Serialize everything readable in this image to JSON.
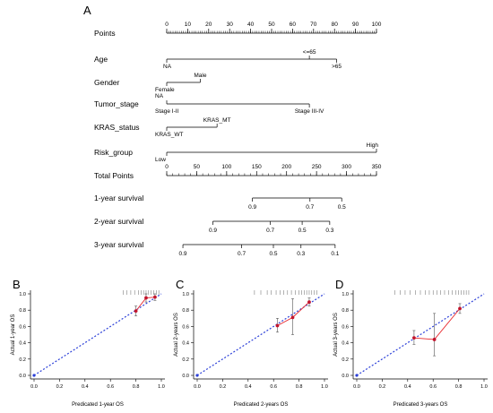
{
  "chart_data": [
    {
      "type": "nomogram",
      "panel_label": "A",
      "rows": [
        {
          "label": "Points",
          "kind": "scale",
          "domain": [
            0,
            100
          ],
          "ticks": [
            0,
            10,
            20,
            30,
            40,
            50,
            60,
            70,
            80,
            90,
            100
          ],
          "tick_labels": [
            "0",
            "10",
            "20",
            "30",
            "40",
            "50",
            "60",
            "70",
            "80",
            "90",
            "100"
          ],
          "minor": 1
        },
        {
          "label": "Age",
          "kind": "categorical",
          "levels": [
            {
              "name": "NA",
              "points": 0,
              "side": "below"
            },
            {
              "name": "<=65",
              "points": 68,
              "side": "above"
            },
            {
              "name": ">65",
              "points": 81,
              "side": "below"
            }
          ]
        },
        {
          "label": "Gender",
          "kind": "categorical",
          "levels": [
            {
              "name": "Female",
              "points": 0,
              "side": "below"
            },
            {
              "name": "Male",
              "points": 16,
              "side": "above"
            }
          ]
        },
        {
          "label": "Tumor_stage",
          "kind": "categorical",
          "levels": [
            {
              "name": "NA",
              "points": 0,
              "side": "above"
            },
            {
              "name": "Stage I-II",
              "points": 0,
              "side": "below"
            },
            {
              "name": "Stage III-IV",
              "points": 68,
              "side": "below"
            }
          ]
        },
        {
          "label": "KRAS_status",
          "kind": "categorical",
          "levels": [
            {
              "name": "KRAS_WT",
              "points": 0,
              "side": "below"
            },
            {
              "name": "KRAS_MT",
              "points": 24,
              "side": "above"
            }
          ]
        },
        {
          "label": "Risk_group",
          "kind": "categorical",
          "levels": [
            {
              "name": "Low",
              "points": 0,
              "side": "below"
            },
            {
              "name": "High",
              "points": 100,
              "side": "above"
            }
          ]
        },
        {
          "label": "Total Points",
          "kind": "scale",
          "domain": [
            0,
            350
          ],
          "ticks": [
            0,
            50,
            100,
            150,
            200,
            250,
            300,
            350
          ],
          "tick_labels": [
            "0",
            "50",
            "100",
            "150",
            "200",
            "250",
            "300",
            "350"
          ],
          "minor": 10
        },
        {
          "label": "1-year survival",
          "kind": "prob_scale",
          "ticks": [
            {
              "label": "0.9",
              "total": 143
            },
            {
              "label": "0.7",
              "total": 239
            },
            {
              "label": "0.5",
              "total": 292
            }
          ],
          "range": [
            143,
            292
          ]
        },
        {
          "label": "2-year survival",
          "kind": "prob_scale",
          "ticks": [
            {
              "label": "0.9",
              "total": 77
            },
            {
              "label": "0.7",
              "total": 173
            },
            {
              "label": "0.5",
              "total": 226
            },
            {
              "label": "0.3",
              "total": 272
            }
          ],
          "range": [
            77,
            272
          ]
        },
        {
          "label": "3-year survival",
          "kind": "prob_scale",
          "ticks": [
            {
              "label": "0.9",
              "total": 27
            },
            {
              "label": "0.7",
              "total": 125
            },
            {
              "label": "0.5",
              "total": 178
            },
            {
              "label": "0.3",
              "total": 224
            },
            {
              "label": "0.1",
              "total": 281
            }
          ],
          "range": [
            27,
            281
          ]
        }
      ]
    },
    {
      "type": "calibration",
      "panel_label": "B",
      "xlabel": "Predicated 1-year OS",
      "ylabel": "Actual 1-year OS",
      "xlim": [
        0,
        1
      ],
      "ylim": [
        0,
        1
      ],
      "ticks": [
        0.0,
        0.2,
        0.4,
        0.6,
        0.8,
        1.0
      ],
      "tick_labels": [
        "0.0",
        "0.2",
        "0.4",
        "0.6",
        "0.8",
        "1.0"
      ],
      "points": [
        {
          "x": 0.8,
          "y": 0.79,
          "lo": 0.73,
          "hi": 0.85
        },
        {
          "x": 0.88,
          "y": 0.95,
          "lo": 0.9,
          "hi": 1.0
        },
        {
          "x": 0.95,
          "y": 0.96,
          "lo": 0.92,
          "hi": 1.0
        }
      ],
      "rug": [
        0.7,
        0.73,
        0.76,
        0.79,
        0.82,
        0.84,
        0.86,
        0.88,
        0.9,
        0.92,
        0.94,
        0.96,
        0.98
      ]
    },
    {
      "type": "calibration",
      "panel_label": "C",
      "xlabel": "Predicated 2-years OS",
      "ylabel": "Actual 2-years OS",
      "xlim": [
        0,
        1
      ],
      "ylim": [
        0,
        1
      ],
      "ticks": [
        0.0,
        0.2,
        0.4,
        0.6,
        0.8,
        1.0
      ],
      "tick_labels": [
        "0.0",
        "0.2",
        "0.4",
        "0.6",
        "0.8",
        "1.0"
      ],
      "points": [
        {
          "x": 0.63,
          "y": 0.61,
          "lo": 0.53,
          "hi": 0.7
        },
        {
          "x": 0.75,
          "y": 0.71,
          "lo": 0.5,
          "hi": 0.94
        },
        {
          "x": 0.88,
          "y": 0.9,
          "lo": 0.85,
          "hi": 0.95
        }
      ],
      "rug": [
        0.45,
        0.5,
        0.55,
        0.58,
        0.62,
        0.65,
        0.68,
        0.71,
        0.74,
        0.77,
        0.8,
        0.82,
        0.84,
        0.86,
        0.88,
        0.9,
        0.92,
        0.94
      ]
    },
    {
      "type": "calibration",
      "panel_label": "D",
      "xlabel": "Predicated 3-years OS",
      "ylabel": "Actual 3-years OS",
      "xlim": [
        0,
        1
      ],
      "ylim": [
        0,
        1
      ],
      "ticks": [
        0.0,
        0.2,
        0.4,
        0.6,
        0.8,
        1.0
      ],
      "tick_labels": [
        "0.0",
        "0.2",
        "0.4",
        "0.6",
        "0.8",
        "1.0"
      ],
      "points": [
        {
          "x": 0.45,
          "y": 0.46,
          "lo": 0.38,
          "hi": 0.55
        },
        {
          "x": 0.61,
          "y": 0.44,
          "lo": 0.24,
          "hi": 0.76
        },
        {
          "x": 0.81,
          "y": 0.82,
          "lo": 0.76,
          "hi": 0.88
        }
      ],
      "rug": [
        0.3,
        0.34,
        0.38,
        0.42,
        0.46,
        0.5,
        0.54,
        0.57,
        0.6,
        0.63,
        0.66,
        0.69,
        0.72,
        0.75,
        0.78,
        0.8,
        0.82,
        0.84,
        0.86,
        0.88
      ]
    }
  ],
  "colors": {
    "ideal_line": "#2b3fd8",
    "calibration_line": "#e8262b",
    "point": "#c2142c",
    "axis": "#000000",
    "error_bar": "#555555",
    "rug": "#666666"
  }
}
